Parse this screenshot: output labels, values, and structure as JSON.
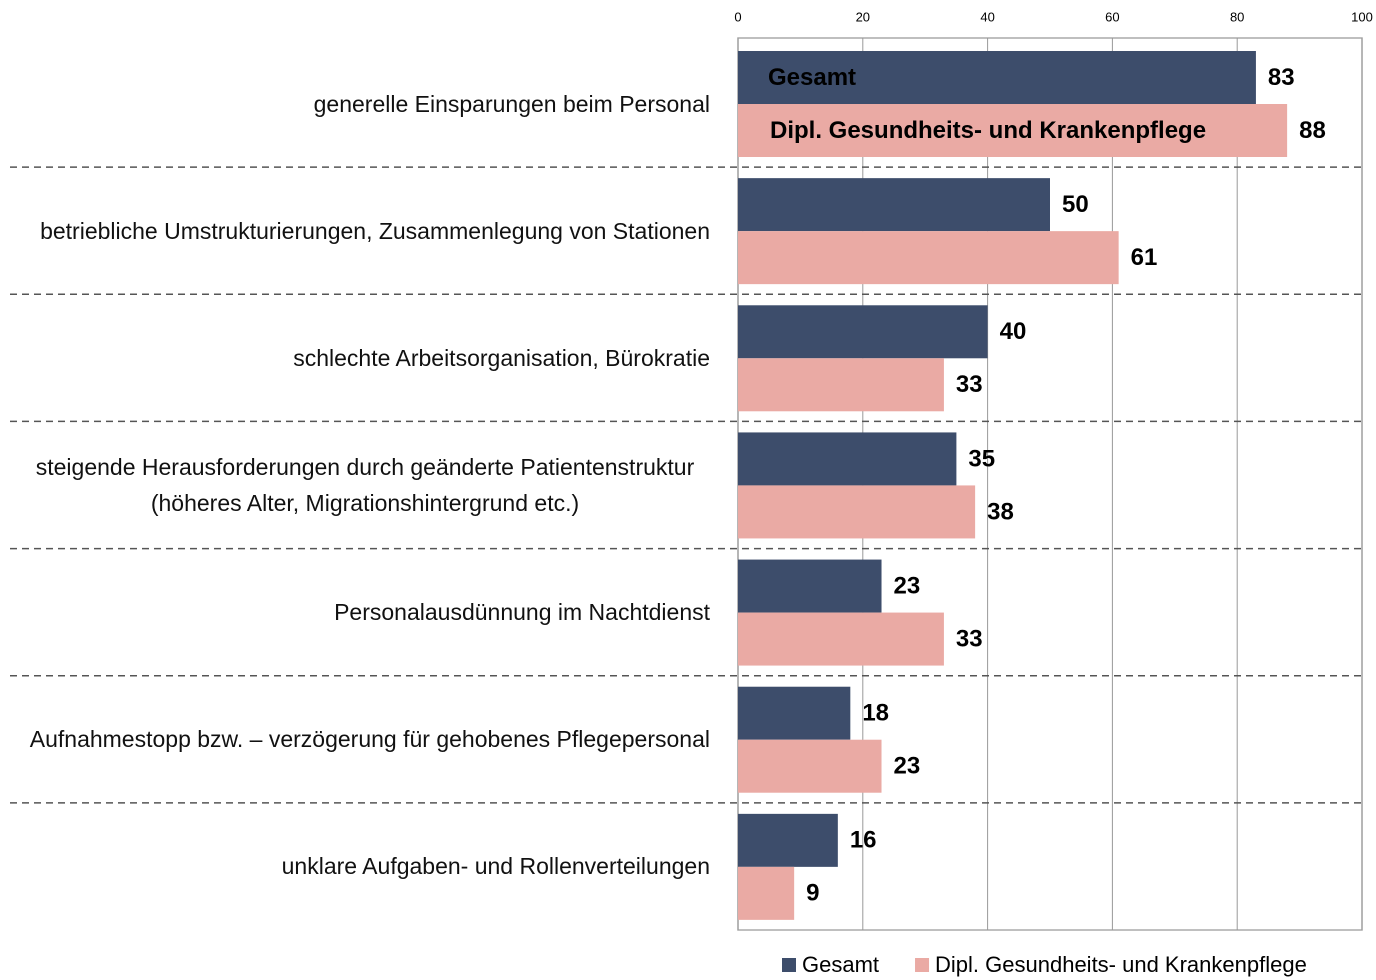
{
  "chart_data": {
    "type": "barh",
    "categories": [
      "generelle Einsparungen beim Personal",
      "betriebliche Umstrukturierungen, Zusammenlegung von Stationen",
      "schlechte Arbeitsorganisation, Bürokratie",
      "steigende Herausforderungen durch geänderte Patientenstruktur (höheres Alter, Migrationshintergrund etc.)",
      "Personalausdünnung im Nachtdienst",
      "Aufnahmestopp bzw.  – verzögerung für gehobenes Pflegepersonal",
      "unklare Aufgaben- und Rollenverteilungen"
    ],
    "series": [
      {
        "name": "Gesamt",
        "color": "#3d4d6b",
        "values": [
          83,
          50,
          40,
          35,
          23,
          18,
          16
        ]
      },
      {
        "name": "Dipl. Gesundheits- und Krankenpflege",
        "color": "#eaaaa4",
        "values": [
          88,
          61,
          33,
          38,
          33,
          23,
          9
        ]
      }
    ],
    "xlim": [
      0,
      100
    ],
    "xticks": [
      0,
      20,
      40,
      60,
      80,
      100
    ],
    "grid": true,
    "legend": "bottom"
  }
}
